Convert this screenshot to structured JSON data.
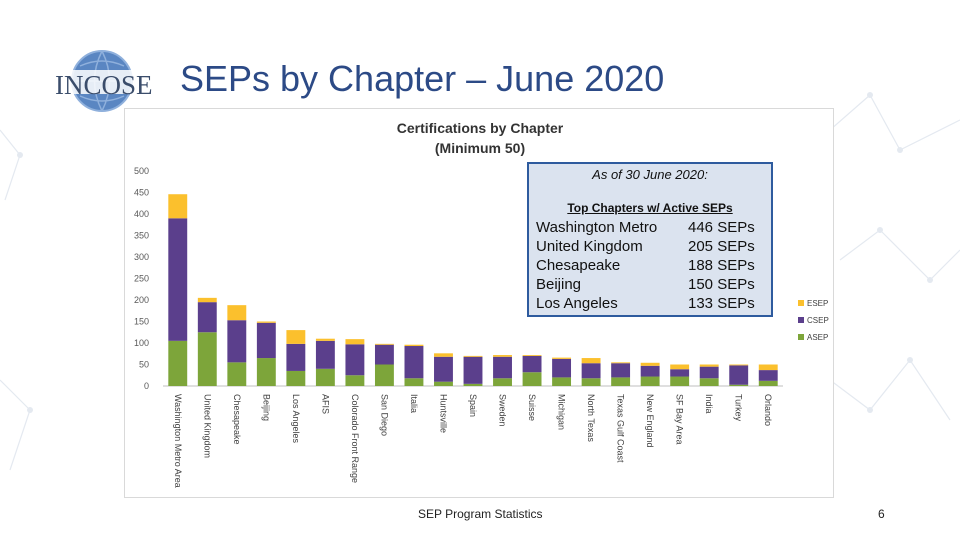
{
  "slide": {
    "title": "SEPs by Chapter – June 2020",
    "logo_text": "INCOSE",
    "footer": "SEP Program Statistics",
    "page_number": "6"
  },
  "info_box": {
    "heading": "As of 30 June 2020:",
    "subheading": "Top Chapters w/ Active SEPs",
    "rows": [
      {
        "name": "Washington Metro",
        "count": "446 SEPs"
      },
      {
        "name": "United Kingdom",
        "count": "205 SEPs"
      },
      {
        "name": "Chesapeake",
        "count": "188 SEPs"
      },
      {
        "name": "Beijing",
        "count": "150 SEPs"
      },
      {
        "name": "Los Angeles",
        "count": "133 SEPs"
      }
    ]
  },
  "colors": {
    "esep": "#fbc02d",
    "csep": "#5b3f8c",
    "asep": "#7da53a",
    "title": "#2c4a86",
    "box_border": "#2e5b9e"
  },
  "chart_data": {
    "type": "bar",
    "stacked": true,
    "title": "Certifications by Chapter",
    "subtitle": "(Minimum 50)",
    "xlabel": "",
    "ylabel": "",
    "ylim": [
      0,
      500
    ],
    "yticks": [
      0,
      50,
      100,
      150,
      200,
      250,
      300,
      350,
      400,
      450,
      500
    ],
    "grid": false,
    "legend_position": "right",
    "categories": [
      "Washington Metro Area",
      "United Kingdom",
      "Chesapeake",
      "Beijing",
      "Los Angeles",
      "AFIS",
      "Colorado Front Range",
      "San Diego",
      "Italia",
      "Huntsville",
      "Spain",
      "Sweden",
      "Suisse",
      "Michigan",
      "North Texas",
      "Texas Gulf Coast",
      "New England",
      "SF Bay Area",
      "India",
      "Turkey",
      "Orlando"
    ],
    "series": [
      {
        "name": "ASEP",
        "color": "#7da53a",
        "values": [
          105,
          125,
          55,
          65,
          35,
          40,
          25,
          50,
          18,
          10,
          5,
          18,
          32,
          20,
          18,
          20,
          22,
          22,
          18,
          3,
          12
        ]
      },
      {
        "name": "CSEP",
        "color": "#5b3f8c",
        "values": [
          285,
          70,
          98,
          82,
          63,
          65,
          72,
          46,
          75,
          58,
          63,
          50,
          38,
          43,
          35,
          33,
          25,
          17,
          27,
          45,
          25
        ]
      },
      {
        "name": "ESEP",
        "color": "#fbc02d",
        "values": [
          56,
          10,
          35,
          3,
          32,
          5,
          12,
          2,
          3,
          8,
          2,
          4,
          2,
          3,
          12,
          2,
          7,
          11,
          5,
          2,
          13
        ]
      }
    ]
  }
}
